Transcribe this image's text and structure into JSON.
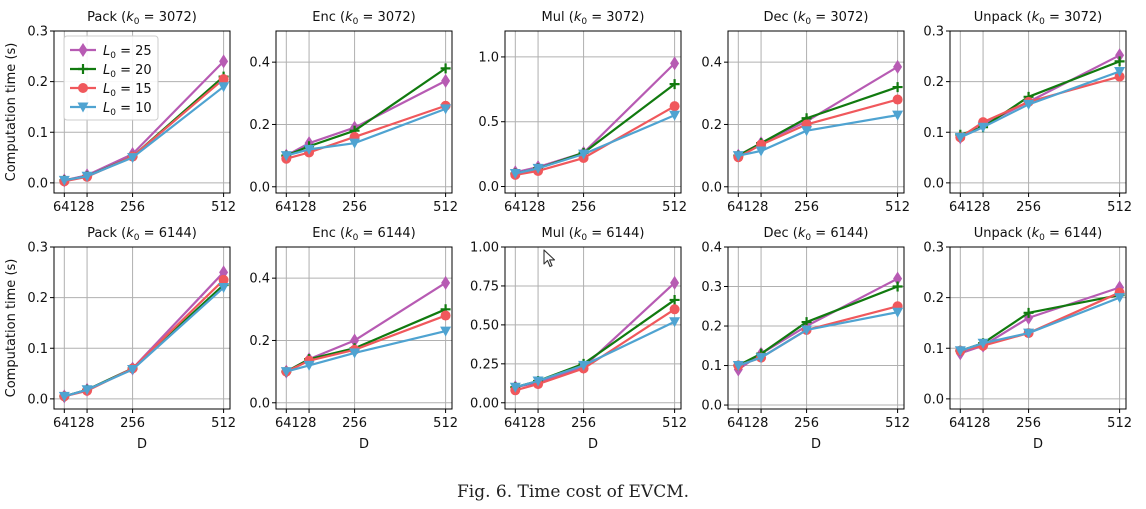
{
  "caption": "Fig. 6.    Time cost of EVCM.",
  "colors": {
    "L25": "#b75bb3",
    "L20": "#117a0f",
    "L15": "#f0585c",
    "L10": "#4fa3d1"
  },
  "chart_data": [
    {
      "type": "line",
      "title_base": "Pack",
      "k0": "3072",
      "xlabel": "",
      "ylabel": "Computation time (s)",
      "x": [
        64,
        128,
        256,
        512
      ],
      "ylim": [
        -0.02,
        0.3
      ],
      "yticks": [
        "0.0",
        "0.1",
        "0.2",
        "0.3"
      ],
      "ytick_values": [
        0,
        0.1,
        0.2,
        0.3
      ],
      "xticks": [
        "64128",
        "256",
        "512"
      ],
      "legend": "top-left",
      "grid": true,
      "series": [
        {
          "name": "L0 = 25",
          "values": [
            0.005,
            0.015,
            0.057,
            0.24
          ]
        },
        {
          "name": "L0 = 20",
          "values": [
            0.005,
            0.013,
            0.052,
            0.21
          ]
        },
        {
          "name": "L0 = 15",
          "values": [
            0.003,
            0.012,
            0.052,
            0.205
          ]
        },
        {
          "name": "L0 = 10",
          "values": [
            0.005,
            0.013,
            0.05,
            0.19
          ]
        }
      ]
    },
    {
      "type": "line",
      "title_base": "Enc",
      "k0": "3072",
      "xlabel": "",
      "ylabel": "",
      "x": [
        64,
        128,
        256,
        512
      ],
      "ylim": [
        -0.02,
        0.5
      ],
      "yticks": [
        "0.0",
        "0.2",
        "0.4"
      ],
      "ytick_values": [
        0,
        0.2,
        0.4
      ],
      "xticks": [
        "64128",
        "256",
        "512"
      ],
      "grid": true,
      "series": [
        {
          "name": "L0 = 25",
          "values": [
            0.1,
            0.14,
            0.19,
            0.34
          ]
        },
        {
          "name": "L0 = 20",
          "values": [
            0.1,
            0.13,
            0.18,
            0.38
          ]
        },
        {
          "name": "L0 = 15",
          "values": [
            0.09,
            0.11,
            0.16,
            0.26
          ]
        },
        {
          "name": "L0 = 10",
          "values": [
            0.1,
            0.12,
            0.14,
            0.25
          ]
        }
      ]
    },
    {
      "type": "line",
      "title_base": "Mul",
      "k0": "3072",
      "xlabel": "",
      "ylabel": "",
      "x": [
        64,
        128,
        256,
        512
      ],
      "ylim": [
        -0.05,
        1.2
      ],
      "yticks": [
        "0.0",
        "0.5",
        "1.0"
      ],
      "ytick_values": [
        0,
        0.5,
        1.0
      ],
      "xticks": [
        "64128",
        "256",
        "512"
      ],
      "grid": true,
      "series": [
        {
          "name": "L0 = 25",
          "values": [
            0.11,
            0.15,
            0.26,
            0.95
          ]
        },
        {
          "name": "L0 = 20",
          "values": [
            0.1,
            0.14,
            0.26,
            0.79
          ]
        },
        {
          "name": "L0 = 15",
          "values": [
            0.09,
            0.12,
            0.22,
            0.62
          ]
        },
        {
          "name": "L0 = 10",
          "values": [
            0.1,
            0.14,
            0.25,
            0.55
          ]
        }
      ]
    },
    {
      "type": "line",
      "title_base": "Dec",
      "k0": "3072",
      "xlabel": "",
      "ylabel": "",
      "x": [
        64,
        128,
        256,
        512
      ],
      "ylim": [
        -0.02,
        0.5
      ],
      "yticks": [
        "0.0",
        "0.2",
        "0.4"
      ],
      "ytick_values": [
        0,
        0.2,
        0.4
      ],
      "xticks": [
        "64128",
        "256",
        "512"
      ],
      "grid": true,
      "series": [
        {
          "name": "L0 = 25",
          "values": [
            0.1,
            0.14,
            0.21,
            0.385
          ]
        },
        {
          "name": "L0 = 20",
          "values": [
            0.1,
            0.14,
            0.22,
            0.32
          ]
        },
        {
          "name": "L0 = 15",
          "values": [
            0.095,
            0.135,
            0.2,
            0.28
          ]
        },
        {
          "name": "L0 = 10",
          "values": [
            0.1,
            0.115,
            0.18,
            0.23
          ]
        }
      ]
    },
    {
      "type": "line",
      "title_base": "Unpack",
      "k0": "3072",
      "xlabel": "",
      "ylabel": "",
      "x": [
        64,
        128,
        256,
        512
      ],
      "ylim": [
        -0.02,
        0.3
      ],
      "yticks": [
        "0.0",
        "0.1",
        "0.2",
        "0.3"
      ],
      "ytick_values": [
        0,
        0.1,
        0.2,
        0.3
      ],
      "xticks": [
        "64128",
        "256",
        "512"
      ],
      "grid": true,
      "series": [
        {
          "name": "L0 = 25",
          "values": [
            0.09,
            0.115,
            0.16,
            0.252
          ]
        },
        {
          "name": "L0 = 20",
          "values": [
            0.095,
            0.11,
            0.17,
            0.24
          ]
        },
        {
          "name": "L0 = 15",
          "values": [
            0.09,
            0.12,
            0.16,
            0.21
          ]
        },
        {
          "name": "L0 = 10",
          "values": [
            0.09,
            0.11,
            0.155,
            0.22
          ]
        }
      ]
    },
    {
      "type": "line",
      "title_base": "Pack",
      "k0": "6144",
      "xlabel": "D",
      "ylabel": "Computation time (s)",
      "x": [
        64,
        128,
        256,
        512
      ],
      "ylim": [
        -0.02,
        0.3
      ],
      "yticks": [
        "0.0",
        "0.1",
        "0.2",
        "0.3"
      ],
      "ytick_values": [
        0,
        0.1,
        0.2,
        0.3
      ],
      "xticks": [
        "64128",
        "256",
        "512"
      ],
      "grid": true,
      "series": [
        {
          "name": "L0 = 25",
          "values": [
            0.005,
            0.018,
            0.06,
            0.25
          ]
        },
        {
          "name": "L0 = 20",
          "values": [
            0.005,
            0.018,
            0.06,
            0.225
          ]
        },
        {
          "name": "L0 = 15",
          "values": [
            0.005,
            0.016,
            0.06,
            0.235
          ]
        },
        {
          "name": "L0 = 10",
          "values": [
            0.005,
            0.018,
            0.058,
            0.22
          ]
        }
      ]
    },
    {
      "type": "line",
      "title_base": "Enc",
      "k0": "6144",
      "xlabel": "D",
      "ylabel": "",
      "x": [
        64,
        128,
        256,
        512
      ],
      "ylim": [
        -0.02,
        0.5
      ],
      "yticks": [
        "0.0",
        "0.2",
        "0.4"
      ],
      "ytick_values": [
        0,
        0.2,
        0.4
      ],
      "xticks": [
        "64128",
        "256",
        "512"
      ],
      "grid": true,
      "series": [
        {
          "name": "L0 = 25",
          "values": [
            0.1,
            0.14,
            0.2,
            0.385
          ]
        },
        {
          "name": "L0 = 20",
          "values": [
            0.1,
            0.14,
            0.175,
            0.3
          ]
        },
        {
          "name": "L0 = 15",
          "values": [
            0.1,
            0.135,
            0.17,
            0.28
          ]
        },
        {
          "name": "L0 = 10",
          "values": [
            0.1,
            0.12,
            0.16,
            0.23
          ]
        }
      ]
    },
    {
      "type": "line",
      "title_base": "Mul",
      "k0": "6144",
      "xlabel": "D",
      "ylabel": "",
      "x": [
        64,
        128,
        256,
        512
      ],
      "ylim": [
        -0.04,
        1.0
      ],
      "yticks": [
        "0.00",
        "0.25",
        "0.50",
        "0.75",
        "1.00"
      ],
      "ytick_values": [
        0,
        0.25,
        0.5,
        0.75,
        1.0
      ],
      "xticks": [
        "64128",
        "256",
        "512"
      ],
      "grid": true,
      "series": [
        {
          "name": "L0 = 25",
          "values": [
            0.1,
            0.13,
            0.23,
            0.77
          ]
        },
        {
          "name": "L0 = 20",
          "values": [
            0.1,
            0.14,
            0.25,
            0.66
          ]
        },
        {
          "name": "L0 = 15",
          "values": [
            0.08,
            0.12,
            0.22,
            0.6
          ]
        },
        {
          "name": "L0 = 10",
          "values": [
            0.1,
            0.14,
            0.24,
            0.52
          ]
        }
      ]
    },
    {
      "type": "line",
      "title_base": "Dec",
      "k0": "6144",
      "xlabel": "D",
      "ylabel": "",
      "x": [
        64,
        128,
        256,
        512
      ],
      "ylim": [
        -0.01,
        0.4
      ],
      "yticks": [
        "0.0",
        "0.1",
        "0.2",
        "0.3",
        "0.4"
      ],
      "ytick_values": [
        0,
        0.1,
        0.2,
        0.3,
        0.4
      ],
      "xticks": [
        "64128",
        "256",
        "512"
      ],
      "grid": true,
      "series": [
        {
          "name": "L0 = 25",
          "values": [
            0.09,
            0.13,
            0.2,
            0.32
          ]
        },
        {
          "name": "L0 = 20",
          "values": [
            0.1,
            0.13,
            0.21,
            0.3
          ]
        },
        {
          "name": "L0 = 15",
          "values": [
            0.1,
            0.12,
            0.19,
            0.25
          ]
        },
        {
          "name": "L0 = 10",
          "values": [
            0.1,
            0.12,
            0.19,
            0.235
          ]
        }
      ]
    },
    {
      "type": "line",
      "title_base": "Unpack",
      "k0": "6144",
      "xlabel": "D",
      "ylabel": "",
      "x": [
        64,
        128,
        256,
        512
      ],
      "ylim": [
        -0.02,
        0.3
      ],
      "yticks": [
        "0.0",
        "0.1",
        "0.2",
        "0.3"
      ],
      "ytick_values": [
        0,
        0.1,
        0.2,
        0.3
      ],
      "xticks": [
        "64128",
        "256",
        "512"
      ],
      "grid": true,
      "series": [
        {
          "name": "L0 = 25",
          "values": [
            0.09,
            0.105,
            0.16,
            0.22
          ]
        },
        {
          "name": "L0 = 20",
          "values": [
            0.095,
            0.11,
            0.17,
            0.205
          ]
        },
        {
          "name": "L0 = 15",
          "values": [
            0.095,
            0.105,
            0.13,
            0.21
          ]
        },
        {
          "name": "L0 = 10",
          "values": [
            0.095,
            0.11,
            0.13,
            0.2
          ]
        }
      ]
    }
  ]
}
